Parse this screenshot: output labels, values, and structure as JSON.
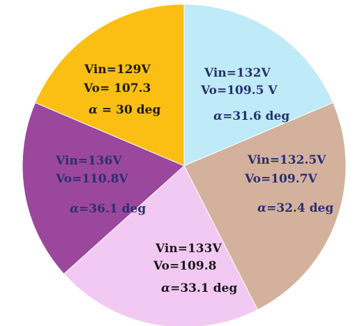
{
  "chart_data": {
    "type": "pie",
    "title": "",
    "slices": [
      {
        "color": "#bfeaf7",
        "line1": "Vin=132V",
        "line2": "Vo=109.5 V",
        "alpha_value": "=31.6 deg"
      },
      {
        "color": "#d4b19d",
        "line1": "Vin=132.5V",
        "line2": "Vo=109.7V",
        "alpha_value": "=32.4 deg"
      },
      {
        "color": "#f2c9f2",
        "line1": "Vin=133V",
        "line2": "Vo=109.8",
        "alpha_value": "=33.1 deg"
      },
      {
        "color": "#9b479d",
        "line1": "Vin=136V",
        "line2": "Vo=110.8V",
        "alpha_value": "=36.1 deg"
      },
      {
        "color": "#fbbe12",
        "line1": "Vin=129V",
        "line2": "Vo= 107.3",
        "alpha_value": " = 30 deg"
      }
    ],
    "alpha_symbol": "α"
  }
}
